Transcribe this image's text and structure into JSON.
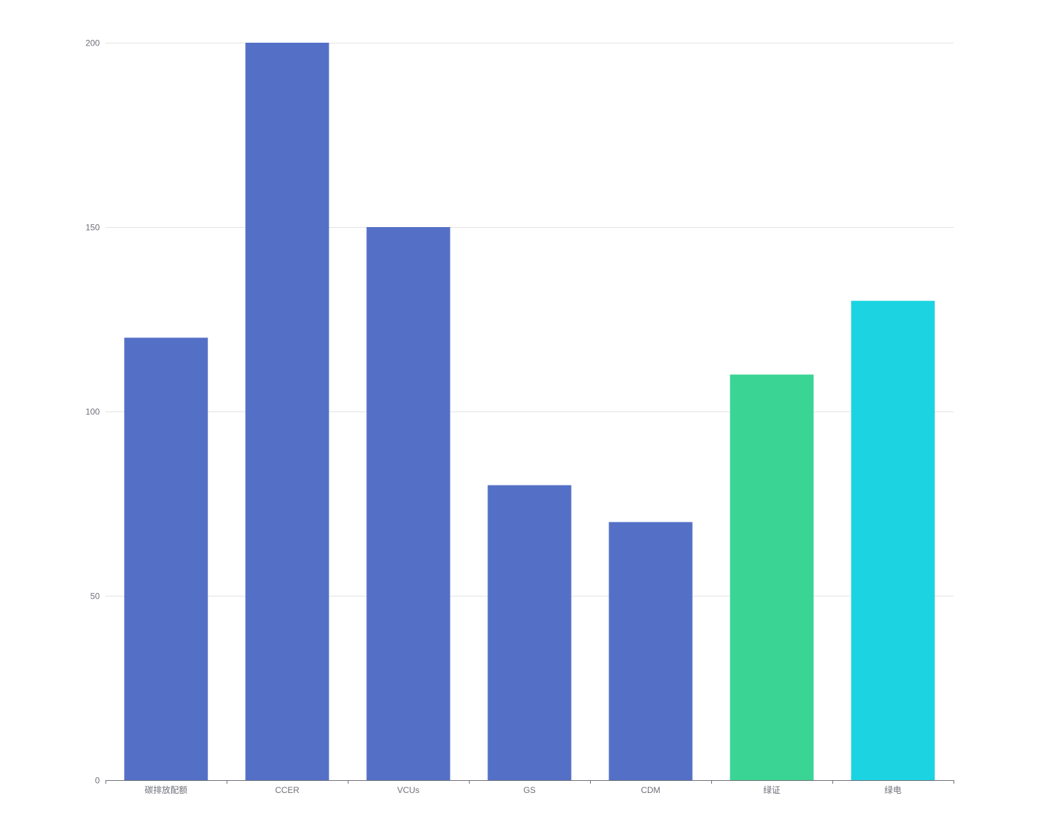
{
  "chart_data": {
    "type": "bar",
    "categories": [
      "碳排放配额",
      "CCER",
      "VCUs",
      "GS",
      "CDM",
      "绿证",
      "绿电"
    ],
    "values": [
      120,
      200,
      150,
      80,
      70,
      110,
      130
    ],
    "colors": [
      "#5470c6",
      "#5470c6",
      "#5470c6",
      "#5470c6",
      "#5470c6",
      "#3ad494",
      "#1bd3e1"
    ],
    "title": "",
    "xlabel": "",
    "ylabel": "",
    "ylim": [
      0,
      200
    ],
    "yticks": [
      0,
      50,
      100,
      150,
      200
    ],
    "grid": true,
    "legend": "none"
  }
}
